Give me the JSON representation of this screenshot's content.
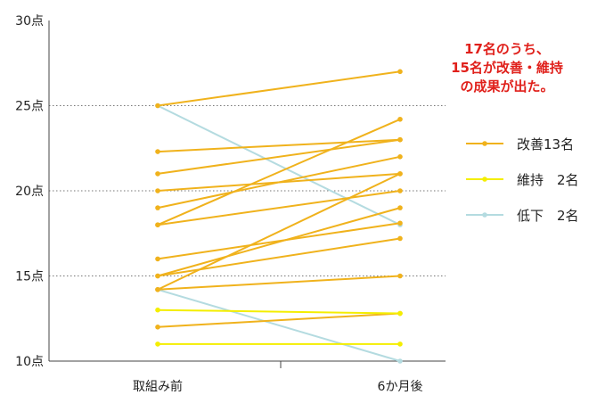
{
  "chart_data": {
    "type": "line",
    "x": [
      "取組み前",
      "6か月後"
    ],
    "yunit": "点",
    "ylim": [
      10,
      30
    ],
    "yticks": [
      10,
      15,
      20,
      25,
      30
    ],
    "dotted_grid": [
      15,
      20,
      25
    ],
    "note_lines": [
      "17名のうち、",
      "15名が改善・維持",
      "の成果が出た。"
    ],
    "legend": [
      {
        "key": "improved",
        "label": "改善13名",
        "color": "#f0b21c"
      },
      {
        "key": "maintained",
        "label": "維持　2名",
        "color": "#f4ee00"
      },
      {
        "key": "declined",
        "label": "低下　2名",
        "color": "#b4dbe0"
      }
    ],
    "series": [
      {
        "group": "improved",
        "values": [
          25,
          27
        ]
      },
      {
        "group": "improved",
        "values": [
          22.3,
          23
        ]
      },
      {
        "group": "improved",
        "values": [
          21,
          23
        ]
      },
      {
        "group": "improved",
        "values": [
          20,
          21
        ]
      },
      {
        "group": "improved",
        "values": [
          19,
          22
        ]
      },
      {
        "group": "improved",
        "values": [
          18,
          24.2
        ]
      },
      {
        "group": "improved",
        "values": [
          18,
          20
        ]
      },
      {
        "group": "improved",
        "values": [
          16,
          18.1
        ]
      },
      {
        "group": "improved",
        "values": [
          15,
          19
        ]
      },
      {
        "group": "improved",
        "values": [
          15,
          17.2
        ]
      },
      {
        "group": "improved",
        "values": [
          14.2,
          21
        ]
      },
      {
        "group": "improved",
        "values": [
          14.2,
          15
        ]
      },
      {
        "group": "improved",
        "values": [
          12,
          12.8
        ]
      },
      {
        "group": "maintained",
        "values": [
          13,
          12.8
        ]
      },
      {
        "group": "maintained",
        "values": [
          11,
          11
        ]
      },
      {
        "group": "declined",
        "values": [
          25,
          18
        ]
      },
      {
        "group": "declined",
        "values": [
          14.2,
          10
        ]
      }
    ]
  }
}
